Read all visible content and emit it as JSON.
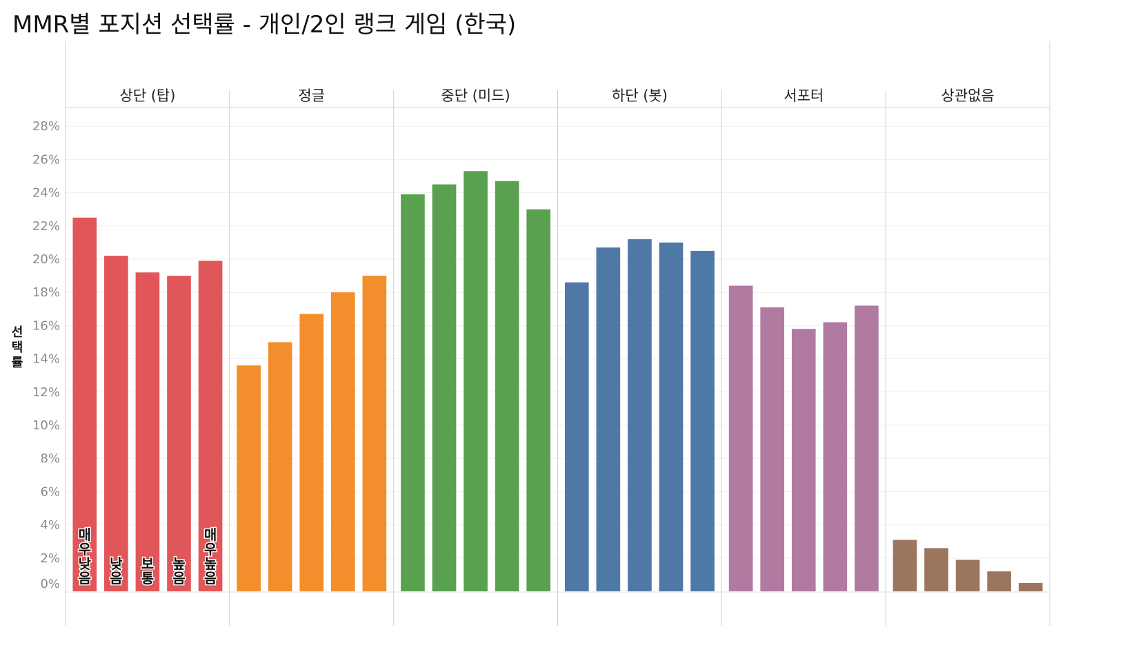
{
  "title": "MMR별 포지션 선택률 - 개인/2인 랭크 게임 (한국)",
  "chart_data": {
    "type": "bar",
    "ylabel": "선택률",
    "ylim": [
      0,
      29
    ],
    "y_ticks": [
      "0%",
      "2%",
      "4%",
      "6%",
      "8%",
      "10%",
      "12%",
      "14%",
      "16%",
      "18%",
      "20%",
      "22%",
      "24%",
      "26%",
      "28%"
    ],
    "grid": true,
    "categories": [
      "매우 낮음",
      "낮음",
      "보통",
      "높음",
      "매우 높음"
    ],
    "category_labels_shown_in_panel": "상단 (탑)",
    "panels": [
      {
        "name": "상단 (탑)",
        "color": "#e15759",
        "values": [
          22.5,
          20.2,
          19.2,
          19.0,
          19.9
        ]
      },
      {
        "name": "정글",
        "color": "#f28e2b",
        "values": [
          13.6,
          15.0,
          16.7,
          18.0,
          19.0
        ]
      },
      {
        "name": "중단 (미드)",
        "color": "#59a14f",
        "values": [
          23.9,
          24.5,
          25.3,
          24.7,
          23.0
        ]
      },
      {
        "name": "하단 (봇)",
        "color": "#4e79a7",
        "values": [
          18.6,
          20.7,
          21.2,
          21.0,
          20.5
        ]
      },
      {
        "name": "서포터",
        "color": "#b07aa1",
        "values": [
          18.4,
          17.1,
          15.8,
          16.2,
          17.2
        ]
      },
      {
        "name": "상관없음",
        "color": "#9c755f",
        "values": [
          3.1,
          2.6,
          1.9,
          1.2,
          0.5
        ]
      }
    ]
  }
}
